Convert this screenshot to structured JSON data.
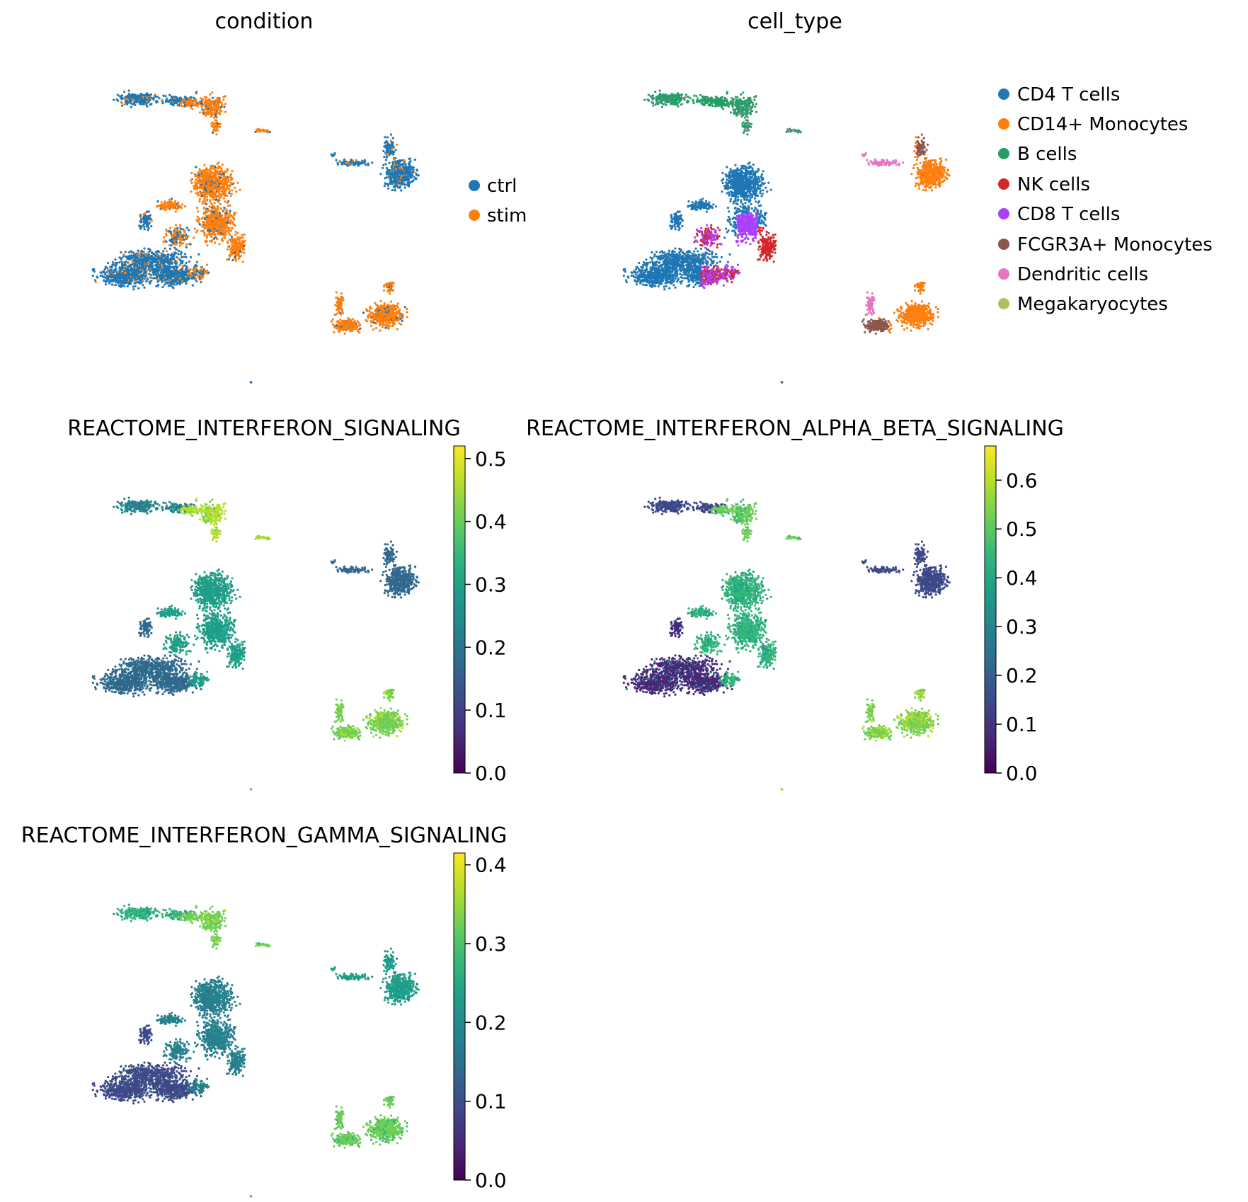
{
  "palettes": {
    "condition": {
      "ctrl": "#1f77b4",
      "stim": "#ff7f0e"
    },
    "cell_type": {
      "CD4 T cells": "#1f77b4",
      "CD14+ Monocytes": "#ff7f0e",
      "B cells": "#279e68",
      "NK cells": "#d62728",
      "CD8 T cells": "#aa40fc",
      "FCGR3A+ Monocytes": "#8c564b",
      "Dendritic cells": "#e377c2",
      "Megakaryocytes": "#b5bd61"
    },
    "viridis": [
      "#440154",
      "#482878",
      "#3e4989",
      "#31688e",
      "#26828e",
      "#1f9e89",
      "#35b779",
      "#6ece58",
      "#b5de2b",
      "#fde725"
    ]
  },
  "chart_data": [
    {
      "type": "scatter",
      "title": "condition",
      "legend_placement": "right",
      "legend": [
        "ctrl",
        "stim"
      ],
      "grid": false
    },
    {
      "type": "scatter",
      "title": "cell_type",
      "legend_placement": "right",
      "legend": [
        "CD4 T cells",
        "CD14+ Monocytes",
        "B cells",
        "NK cells",
        "CD8 T cells",
        "FCGR3A+ Monocytes",
        "Dendritic cells",
        "Megakaryocytes"
      ],
      "grid": false
    },
    {
      "type": "scatter",
      "title": "REACTOME_INTERFERON_SIGNALING",
      "colorbar": {
        "range": [
          0.0,
          0.52
        ],
        "ticks": [
          "0.0",
          "0.1",
          "0.2",
          "0.3",
          "0.4",
          "0.5"
        ]
      },
      "group_levels": {
        "B cells": 0.25,
        "stim B": 0.45,
        "CD4/CD8 T/NK upper": 0.3,
        "CD4 T lower": 0.16,
        "FCGR3A+ ctrl": 0.18,
        "CD14+ stim": 0.42
      },
      "grid": false
    },
    {
      "type": "scatter",
      "title": "REACTOME_INTERFERON_ALPHA_BETA_SIGNALING",
      "colorbar": {
        "range": [
          0.0,
          0.67
        ],
        "ticks": [
          "0.0",
          "0.1",
          "0.2",
          "0.3",
          "0.4",
          "0.5",
          "0.6"
        ]
      },
      "group_levels": {
        "B cells": 0.12,
        "stim B": 0.5,
        "CD4/CD8 T/NK upper": 0.42,
        "CD4 T lower": 0.08,
        "FCGR3A+ ctrl": 0.16,
        "CD14+ stim": 0.55
      },
      "grid": false
    },
    {
      "type": "scatter",
      "title": "REACTOME_INTERFERON_GAMMA_SIGNALING",
      "colorbar": {
        "range": [
          0.0,
          0.415
        ],
        "ticks": [
          "0.0",
          "0.1",
          "0.2",
          "0.3",
          "0.4"
        ]
      },
      "group_levels": {
        "B cells": 0.26,
        "stim B": 0.33,
        "CD4/CD8 T/NK upper": 0.17,
        "CD4 T lower": 0.1,
        "FCGR3A+ ctrl": 0.22,
        "CD14+ stim": 0.31
      },
      "grid": false
    }
  ]
}
